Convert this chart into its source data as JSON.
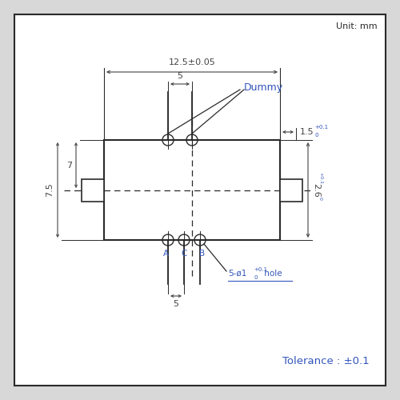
{
  "fig_size": [
    5.0,
    5.0
  ],
  "dpi": 100,
  "bg_color": "#d8d8d8",
  "box_color": "#ffffff",
  "line_color": "#2a2a2a",
  "dim_color": "#444444",
  "blue_color": "#3355bb",
  "unit_text": "Unit: mm",
  "tolerance_text": "Tolerance : ±0.1",
  "dim_12_5": "12.5±0.05",
  "dim_5_top": "5",
  "dim_5_bot": "5",
  "dim_7": "7",
  "dim_7_5": "7.5",
  "dim_1_5": "1.5",
  "dim_2_6": "2.6",
  "label_dummy": "Dummy",
  "sup_tol": "+0.1",
  "sub_tol": "0",
  "label_hole_prefix": "5-ø1",
  "label_hole_suffix": " hole"
}
